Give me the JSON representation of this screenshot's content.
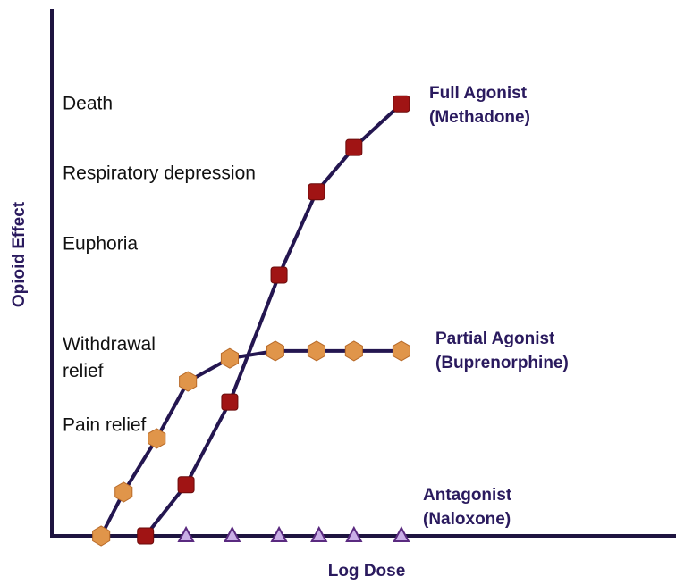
{
  "chart_data": {
    "type": "line",
    "xlabel": "Log Dose",
    "ylabel": "Opioid Effect",
    "xlim": [
      0,
      100
    ],
    "ylim": [
      0,
      100
    ],
    "annotations": [
      "Death",
      "Respiratory depression",
      "Euphoria",
      "Withdrawal relief",
      "Pain relief"
    ],
    "series": [
      {
        "name": "Full Agonist (Methadone)",
        "color": "#a01414",
        "marker": "square",
        "x": [
          15.0,
          21.5,
          28.5,
          36.4,
          42.4,
          48.4,
          56.0
        ],
        "values": [
          0,
          9.7,
          25.4,
          49.5,
          65.3,
          73.7,
          82.0
        ]
      },
      {
        "name": "Partial Agonist (Buprenorphine)",
        "color": "#e0954a",
        "marker": "hexagon",
        "x": [
          7.9,
          11.5,
          16.8,
          21.8,
          28.5,
          35.8,
          42.4,
          48.4,
          56.0
        ],
        "values": [
          0,
          8.3,
          18.5,
          29.3,
          33.7,
          35.1,
          35.1,
          35.1,
          35.1
        ]
      },
      {
        "name": "Antagonist (Naloxone)",
        "color": "#c9aee6",
        "marker": "triangle",
        "x": [
          21.5,
          28.9,
          36.4,
          42.8,
          48.4,
          56.0
        ],
        "values": [
          0,
          0,
          0,
          0,
          0,
          0
        ]
      }
    ]
  }
}
